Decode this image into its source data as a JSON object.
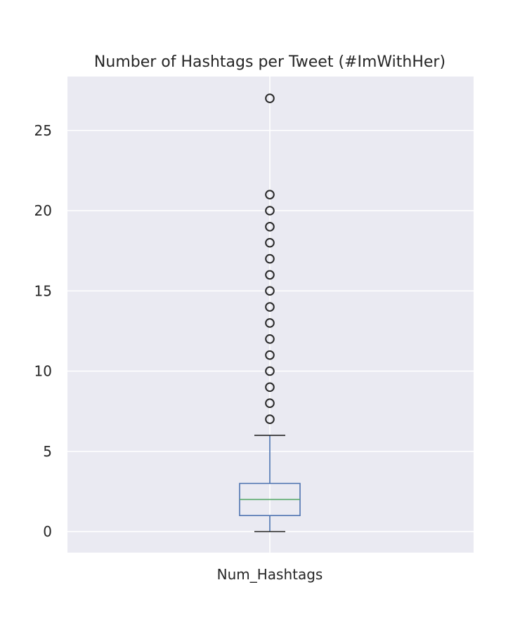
{
  "chart_data": {
    "type": "box",
    "title": "Number of Hashtags per Tweet (#ImWithHer)",
    "xlabel": "",
    "ylabel": "",
    "categories": [
      "Num_Hashtags"
    ],
    "ylim": [
      -1.3,
      27.4
    ],
    "yticks": [
      0,
      5,
      10,
      15,
      20,
      25
    ],
    "grid": true,
    "box": {
      "whisker_low": 0,
      "q1": 1,
      "median": 2,
      "q3": 3,
      "whisker_high": 6
    },
    "outliers": [
      7,
      8,
      9,
      10,
      11,
      12,
      13,
      14,
      15,
      16,
      17,
      18,
      19,
      20,
      21,
      27
    ],
    "colors": {
      "background": "#EAEAF2",
      "grid": "#FFFFFF",
      "box": "#4C72B0",
      "median": "#55A868",
      "whisker_cap": "#262626",
      "outlier": "#262626"
    }
  }
}
